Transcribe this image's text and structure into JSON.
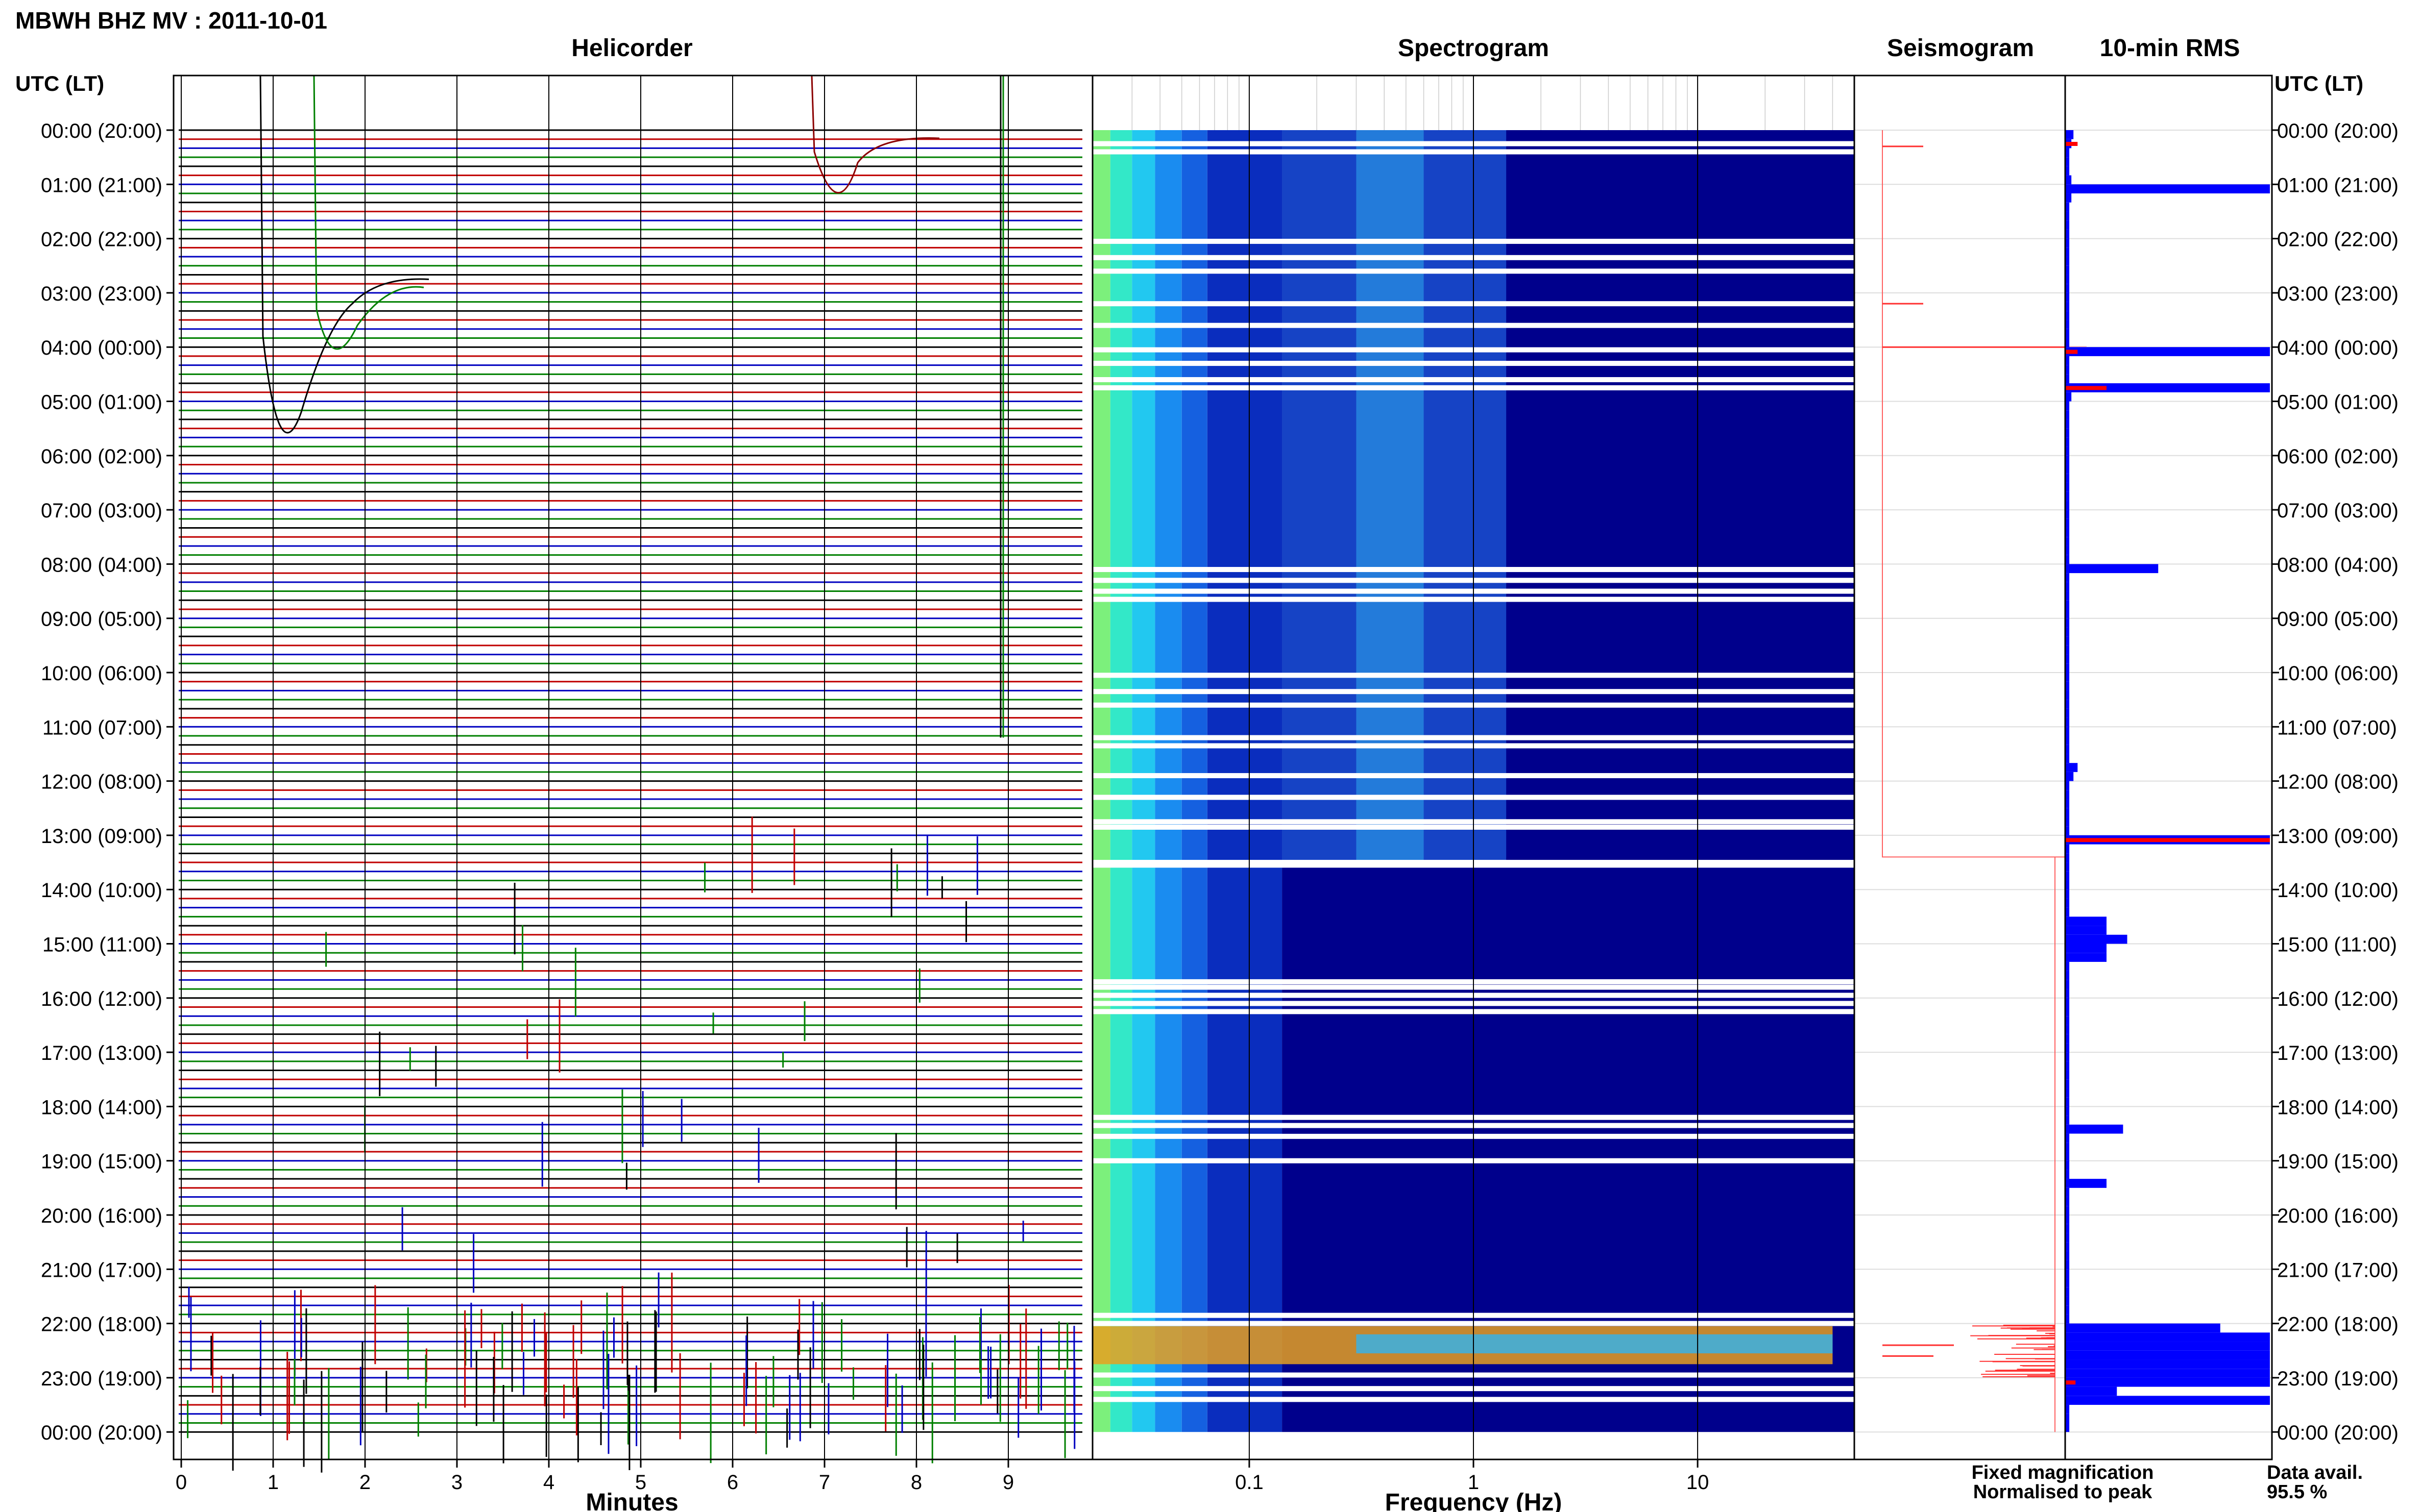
{
  "chart_data": {
    "type": "multi-panel seismic summary",
    "title": "MBWH BHZ MV : 2011-10-01",
    "time_axis": {
      "header": "UTC (LT)",
      "hour_labels": [
        "00:00 (20:00)",
        "01:00 (21:00)",
        "02:00 (22:00)",
        "03:00 (23:00)",
        "04:00 (00:00)",
        "05:00 (01:00)",
        "06:00 (02:00)",
        "07:00 (03:00)",
        "08:00 (04:00)",
        "09:00 (05:00)",
        "10:00 (06:00)",
        "11:00 (07:00)",
        "12:00 (08:00)",
        "13:00 (09:00)",
        "14:00 (10:00)",
        "15:00 (11:00)",
        "16:00 (12:00)",
        "17:00 (13:00)",
        "18:00 (14:00)",
        "19:00 (15:00)",
        "20:00 (16:00)",
        "21:00 (17:00)",
        "22:00 (18:00)",
        "23:00 (19:00)",
        "00:00 (20:00)"
      ]
    },
    "helicorder": {
      "title": "Helicorder",
      "xlabel": "Minutes",
      "xticks": [
        "0",
        "1",
        "2",
        "3",
        "4",
        "5",
        "6",
        "7",
        "8",
        "9"
      ],
      "xlim": [
        0,
        10
      ],
      "trace_colors": [
        "#000000",
        "#c00000",
        "#0000c0",
        "#008000"
      ],
      "traces_per_hour": 6
    },
    "spectrogram": {
      "title": "Spectrogram",
      "xlabel": "Frequency (Hz)",
      "xscale": "log",
      "xticks": [
        "0.1",
        "1",
        "10"
      ],
      "xlim": [
        0.02,
        50
      ]
    },
    "seismogram": {
      "title": "Seismogram"
    },
    "rms": {
      "title": "10-min RMS",
      "legend": {
        "fixed_label": "Fixed magnification",
        "fixed_color": "#0000ff",
        "normalised_label": "Normalised to peak",
        "normalised_color": "#ff0000"
      },
      "fixed_magnification_fraction": [
        0.04,
        0.03,
        0.02,
        0.02,
        0.02,
        0.03,
        0.99,
        0.03,
        0.02,
        0.02,
        0.02,
        0.02,
        0.02,
        0.02,
        0.02,
        0.02,
        0.02,
        0.02,
        0.02,
        0.02,
        0.02,
        0.02,
        0.02,
        0.02,
        0.99,
        0.02,
        0.02,
        0.02,
        0.99,
        0.03,
        0.02,
        0.02,
        0.02,
        0.02,
        0.02,
        0.02,
        0.02,
        0.02,
        0.02,
        0.02,
        0.02,
        0.02,
        0.02,
        0.02,
        0.02,
        0.02,
        0.02,
        0.02,
        0.45,
        0.02,
        0.02,
        0.02,
        0.02,
        0.02,
        0.02,
        0.02,
        0.02,
        0.02,
        0.02,
        0.02,
        0.02,
        0.02,
        0.02,
        0.02,
        0.02,
        0.02,
        0.02,
        0.02,
        0.02,
        0.02,
        0.06,
        0.04,
        0.02,
        0.02,
        0.02,
        0.02,
        0.02,
        0.02,
        0.99,
        0.02,
        0.02,
        0.02,
        0.02,
        0.02,
        0.02,
        0.02,
        0.02,
        0.2,
        0.2,
        0.3,
        0.2,
        0.2,
        0.02,
        0.02,
        0.02,
        0.02,
        0.02,
        0.02,
        0.02,
        0.02,
        0.02,
        0.02,
        0.02,
        0.02,
        0.02,
        0.02,
        0.02,
        0.02,
        0.02,
        0.02,
        0.28,
        0.02,
        0.02,
        0.02,
        0.02,
        0.02,
        0.2,
        0.02,
        0.02,
        0.02,
        0.02,
        0.02,
        0.02,
        0.02,
        0.02,
        0.02,
        0.02,
        0.02,
        0.02,
        0.02,
        0.02,
        0.02,
        0.75,
        0.99,
        0.99,
        0.99,
        0.99,
        0.99,
        0.99,
        0.25,
        0.99,
        0.02,
        0.02,
        0.02
      ],
      "normalised_to_peak_fraction": [
        0.0,
        0.06,
        0.0,
        0.0,
        0.0,
        0.0,
        0.0,
        0.0,
        0.0,
        0.0,
        0.0,
        0.0,
        0.0,
        0.0,
        0.0,
        0.0,
        0.0,
        0.0,
        0.0,
        0.0,
        0.0,
        0.0,
        0.0,
        0.0,
        0.06,
        0.0,
        0.0,
        0.0,
        0.2,
        0.0,
        0.0,
        0.0,
        0.0,
        0.0,
        0.0,
        0.0,
        0.0,
        0.0,
        0.0,
        0.0,
        0.0,
        0.0,
        0.0,
        0.0,
        0.0,
        0.0,
        0.0,
        0.0,
        0.0,
        0.0,
        0.0,
        0.0,
        0.0,
        0.0,
        0.0,
        0.0,
        0.0,
        0.0,
        0.0,
        0.0,
        0.0,
        0.0,
        0.0,
        0.0,
        0.0,
        0.0,
        0.0,
        0.0,
        0.0,
        0.0,
        0.0,
        0.0,
        0.0,
        0.0,
        0.0,
        0.0,
        0.0,
        0.0,
        0.99,
        0.0,
        0.0,
        0.0,
        0.0,
        0.0,
        0.0,
        0.0,
        0.0,
        0.0,
        0.0,
        0.0,
        0.0,
        0.0,
        0.0,
        0.0,
        0.0,
        0.0,
        0.0,
        0.0,
        0.0,
        0.0,
        0.0,
        0.0,
        0.0,
        0.0,
        0.0,
        0.0,
        0.0,
        0.0,
        0.0,
        0.0,
        0.0,
        0.0,
        0.0,
        0.0,
        0.0,
        0.0,
        0.0,
        0.0,
        0.0,
        0.0,
        0.0,
        0.0,
        0.0,
        0.0,
        0.0,
        0.0,
        0.0,
        0.0,
        0.0,
        0.0,
        0.0,
        0.0,
        0.0,
        0.0,
        0.0,
        0.0,
        0.0,
        0.0,
        0.05,
        0.0,
        0.0,
        0.0,
        0.0
      ]
    },
    "data_availability": {
      "label": "Data avail.",
      "value": "95.5 %"
    }
  }
}
